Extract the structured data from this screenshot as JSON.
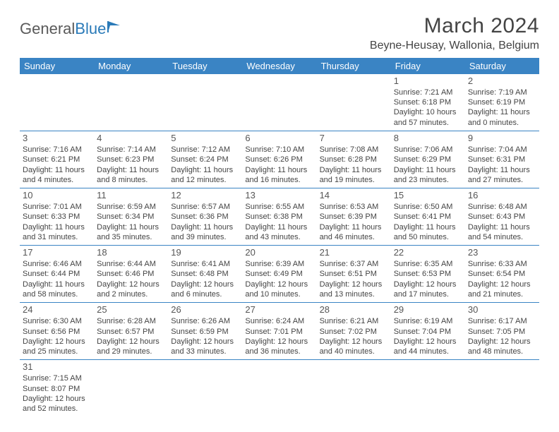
{
  "logo": {
    "text1": "General",
    "text2": "Blue"
  },
  "title": "March 2024",
  "location": "Beyne-Heusay, Wallonia, Belgium",
  "colors": {
    "header_bg": "#3a84c4",
    "header_text": "#ffffff",
    "border": "#3a84c4",
    "logo_gray": "#5a5a5a",
    "logo_blue": "#2a7ab8"
  },
  "weekdays": [
    "Sunday",
    "Monday",
    "Tuesday",
    "Wednesday",
    "Thursday",
    "Friday",
    "Saturday"
  ],
  "weeks": [
    [
      null,
      null,
      null,
      null,
      null,
      {
        "d": "1",
        "sr": "Sunrise: 7:21 AM",
        "ss": "Sunset: 6:18 PM",
        "dl1": "Daylight: 10 hours",
        "dl2": "and 57 minutes."
      },
      {
        "d": "2",
        "sr": "Sunrise: 7:19 AM",
        "ss": "Sunset: 6:19 PM",
        "dl1": "Daylight: 11 hours",
        "dl2": "and 0 minutes."
      }
    ],
    [
      {
        "d": "3",
        "sr": "Sunrise: 7:16 AM",
        "ss": "Sunset: 6:21 PM",
        "dl1": "Daylight: 11 hours",
        "dl2": "and 4 minutes."
      },
      {
        "d": "4",
        "sr": "Sunrise: 7:14 AM",
        "ss": "Sunset: 6:23 PM",
        "dl1": "Daylight: 11 hours",
        "dl2": "and 8 minutes."
      },
      {
        "d": "5",
        "sr": "Sunrise: 7:12 AM",
        "ss": "Sunset: 6:24 PM",
        "dl1": "Daylight: 11 hours",
        "dl2": "and 12 minutes."
      },
      {
        "d": "6",
        "sr": "Sunrise: 7:10 AM",
        "ss": "Sunset: 6:26 PM",
        "dl1": "Daylight: 11 hours",
        "dl2": "and 16 minutes."
      },
      {
        "d": "7",
        "sr": "Sunrise: 7:08 AM",
        "ss": "Sunset: 6:28 PM",
        "dl1": "Daylight: 11 hours",
        "dl2": "and 19 minutes."
      },
      {
        "d": "8",
        "sr": "Sunrise: 7:06 AM",
        "ss": "Sunset: 6:29 PM",
        "dl1": "Daylight: 11 hours",
        "dl2": "and 23 minutes."
      },
      {
        "d": "9",
        "sr": "Sunrise: 7:04 AM",
        "ss": "Sunset: 6:31 PM",
        "dl1": "Daylight: 11 hours",
        "dl2": "and 27 minutes."
      }
    ],
    [
      {
        "d": "10",
        "sr": "Sunrise: 7:01 AM",
        "ss": "Sunset: 6:33 PM",
        "dl1": "Daylight: 11 hours",
        "dl2": "and 31 minutes."
      },
      {
        "d": "11",
        "sr": "Sunrise: 6:59 AM",
        "ss": "Sunset: 6:34 PM",
        "dl1": "Daylight: 11 hours",
        "dl2": "and 35 minutes."
      },
      {
        "d": "12",
        "sr": "Sunrise: 6:57 AM",
        "ss": "Sunset: 6:36 PM",
        "dl1": "Daylight: 11 hours",
        "dl2": "and 39 minutes."
      },
      {
        "d": "13",
        "sr": "Sunrise: 6:55 AM",
        "ss": "Sunset: 6:38 PM",
        "dl1": "Daylight: 11 hours",
        "dl2": "and 43 minutes."
      },
      {
        "d": "14",
        "sr": "Sunrise: 6:53 AM",
        "ss": "Sunset: 6:39 PM",
        "dl1": "Daylight: 11 hours",
        "dl2": "and 46 minutes."
      },
      {
        "d": "15",
        "sr": "Sunrise: 6:50 AM",
        "ss": "Sunset: 6:41 PM",
        "dl1": "Daylight: 11 hours",
        "dl2": "and 50 minutes."
      },
      {
        "d": "16",
        "sr": "Sunrise: 6:48 AM",
        "ss": "Sunset: 6:43 PM",
        "dl1": "Daylight: 11 hours",
        "dl2": "and 54 minutes."
      }
    ],
    [
      {
        "d": "17",
        "sr": "Sunrise: 6:46 AM",
        "ss": "Sunset: 6:44 PM",
        "dl1": "Daylight: 11 hours",
        "dl2": "and 58 minutes."
      },
      {
        "d": "18",
        "sr": "Sunrise: 6:44 AM",
        "ss": "Sunset: 6:46 PM",
        "dl1": "Daylight: 12 hours",
        "dl2": "and 2 minutes."
      },
      {
        "d": "19",
        "sr": "Sunrise: 6:41 AM",
        "ss": "Sunset: 6:48 PM",
        "dl1": "Daylight: 12 hours",
        "dl2": "and 6 minutes."
      },
      {
        "d": "20",
        "sr": "Sunrise: 6:39 AM",
        "ss": "Sunset: 6:49 PM",
        "dl1": "Daylight: 12 hours",
        "dl2": "and 10 minutes."
      },
      {
        "d": "21",
        "sr": "Sunrise: 6:37 AM",
        "ss": "Sunset: 6:51 PM",
        "dl1": "Daylight: 12 hours",
        "dl2": "and 13 minutes."
      },
      {
        "d": "22",
        "sr": "Sunrise: 6:35 AM",
        "ss": "Sunset: 6:53 PM",
        "dl1": "Daylight: 12 hours",
        "dl2": "and 17 minutes."
      },
      {
        "d": "23",
        "sr": "Sunrise: 6:33 AM",
        "ss": "Sunset: 6:54 PM",
        "dl1": "Daylight: 12 hours",
        "dl2": "and 21 minutes."
      }
    ],
    [
      {
        "d": "24",
        "sr": "Sunrise: 6:30 AM",
        "ss": "Sunset: 6:56 PM",
        "dl1": "Daylight: 12 hours",
        "dl2": "and 25 minutes."
      },
      {
        "d": "25",
        "sr": "Sunrise: 6:28 AM",
        "ss": "Sunset: 6:57 PM",
        "dl1": "Daylight: 12 hours",
        "dl2": "and 29 minutes."
      },
      {
        "d": "26",
        "sr": "Sunrise: 6:26 AM",
        "ss": "Sunset: 6:59 PM",
        "dl1": "Daylight: 12 hours",
        "dl2": "and 33 minutes."
      },
      {
        "d": "27",
        "sr": "Sunrise: 6:24 AM",
        "ss": "Sunset: 7:01 PM",
        "dl1": "Daylight: 12 hours",
        "dl2": "and 36 minutes."
      },
      {
        "d": "28",
        "sr": "Sunrise: 6:21 AM",
        "ss": "Sunset: 7:02 PM",
        "dl1": "Daylight: 12 hours",
        "dl2": "and 40 minutes."
      },
      {
        "d": "29",
        "sr": "Sunrise: 6:19 AM",
        "ss": "Sunset: 7:04 PM",
        "dl1": "Daylight: 12 hours",
        "dl2": "and 44 minutes."
      },
      {
        "d": "30",
        "sr": "Sunrise: 6:17 AM",
        "ss": "Sunset: 7:05 PM",
        "dl1": "Daylight: 12 hours",
        "dl2": "and 48 minutes."
      }
    ],
    [
      {
        "d": "31",
        "sr": "Sunrise: 7:15 AM",
        "ss": "Sunset: 8:07 PM",
        "dl1": "Daylight: 12 hours",
        "dl2": "and 52 minutes."
      },
      null,
      null,
      null,
      null,
      null,
      null
    ]
  ]
}
